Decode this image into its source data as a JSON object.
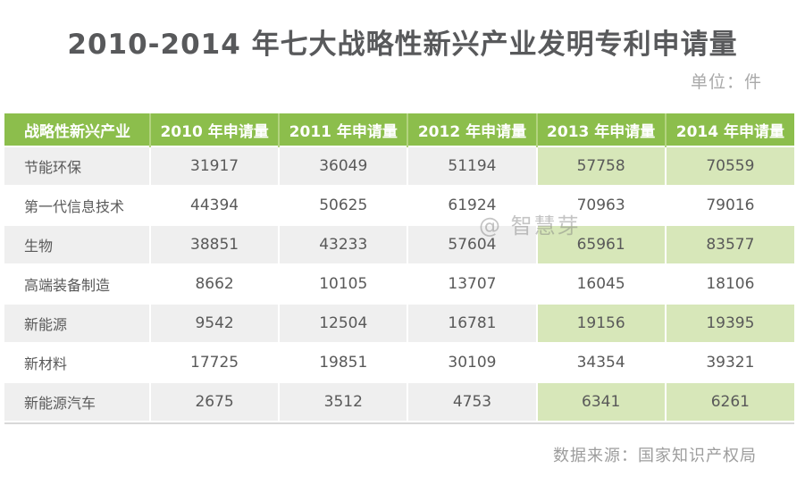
{
  "page": {
    "title": "2010-2014 年七大战略性新兴产业发明专利申请量",
    "unit_label": "单位：件",
    "watermark": "@ 智慧芽",
    "source": "数据来源：国家知识产权局"
  },
  "colors": {
    "header_bg": "#8cbe4c",
    "header_divider": "#b2d37f",
    "header_text": "#ffffff",
    "stripe_gray": "#efefef",
    "stripe_green": "#d7e7b9",
    "title_text": "#58595b",
    "body_text": "#595959",
    "muted_text": "#9d9d9d",
    "bottom_border": "#d8d8d8"
  },
  "table": {
    "columns": [
      "战略性新兴产业",
      "2010 年申请量",
      "2011 年申请量",
      "2012 年申请量",
      "2013 年申请量",
      "2014 年申请量"
    ],
    "rows": [
      {
        "industry": "节能环保",
        "values": [
          "31917",
          "36049",
          "51194",
          "57758",
          "70559"
        ]
      },
      {
        "industry": "第一代信息技术",
        "values": [
          "44394",
          "50625",
          "61924",
          "70963",
          "79016"
        ]
      },
      {
        "industry": "生物",
        "values": [
          "38851",
          "43233",
          "57604",
          "65961",
          "83577"
        ]
      },
      {
        "industry": "高端装备制造",
        "values": [
          "8662",
          "10105",
          "13707",
          "16045",
          "18106"
        ]
      },
      {
        "industry": "新能源",
        "values": [
          "9542",
          "12504",
          "16781",
          "19156",
          "19395"
        ]
      },
      {
        "industry": "新材料",
        "values": [
          "17725",
          "19851",
          "30109",
          "34354",
          "39321"
        ]
      },
      {
        "industry": "新能源汽车",
        "values": [
          "2675",
          "3512",
          "4753",
          "6341",
          "6261"
        ]
      }
    ]
  },
  "chart_data": {
    "type": "table",
    "title": "2010-2014 年七大战略性新兴产业发明专利申请量",
    "unit": "件",
    "source": "国家知识产权局",
    "categories": [
      "节能环保",
      "第一代信息技术",
      "生物",
      "高端装备制造",
      "新能源",
      "新材料",
      "新能源汽车"
    ],
    "series": [
      {
        "name": "2010 年申请量",
        "values": [
          31917,
          44394,
          38851,
          8662,
          9542,
          17725,
          2675
        ]
      },
      {
        "name": "2011 年申请量",
        "values": [
          36049,
          50625,
          43233,
          10105,
          12504,
          19851,
          3512
        ]
      },
      {
        "name": "2012 年申请量",
        "values": [
          51194,
          61924,
          57604,
          13707,
          16781,
          30109,
          4753
        ]
      },
      {
        "name": "2013 年申请量",
        "values": [
          57758,
          70963,
          65961,
          16045,
          19156,
          34354,
          6341
        ]
      },
      {
        "name": "2014 年申请量",
        "values": [
          70559,
          79016,
          83577,
          18106,
          19395,
          39321,
          6261
        ]
      }
    ],
    "layout": {
      "striped_rows": "odd",
      "highlight_columns": [
        "2013 年申请量",
        "2014 年申请量"
      ],
      "header_color": "#8cbe4c"
    }
  }
}
